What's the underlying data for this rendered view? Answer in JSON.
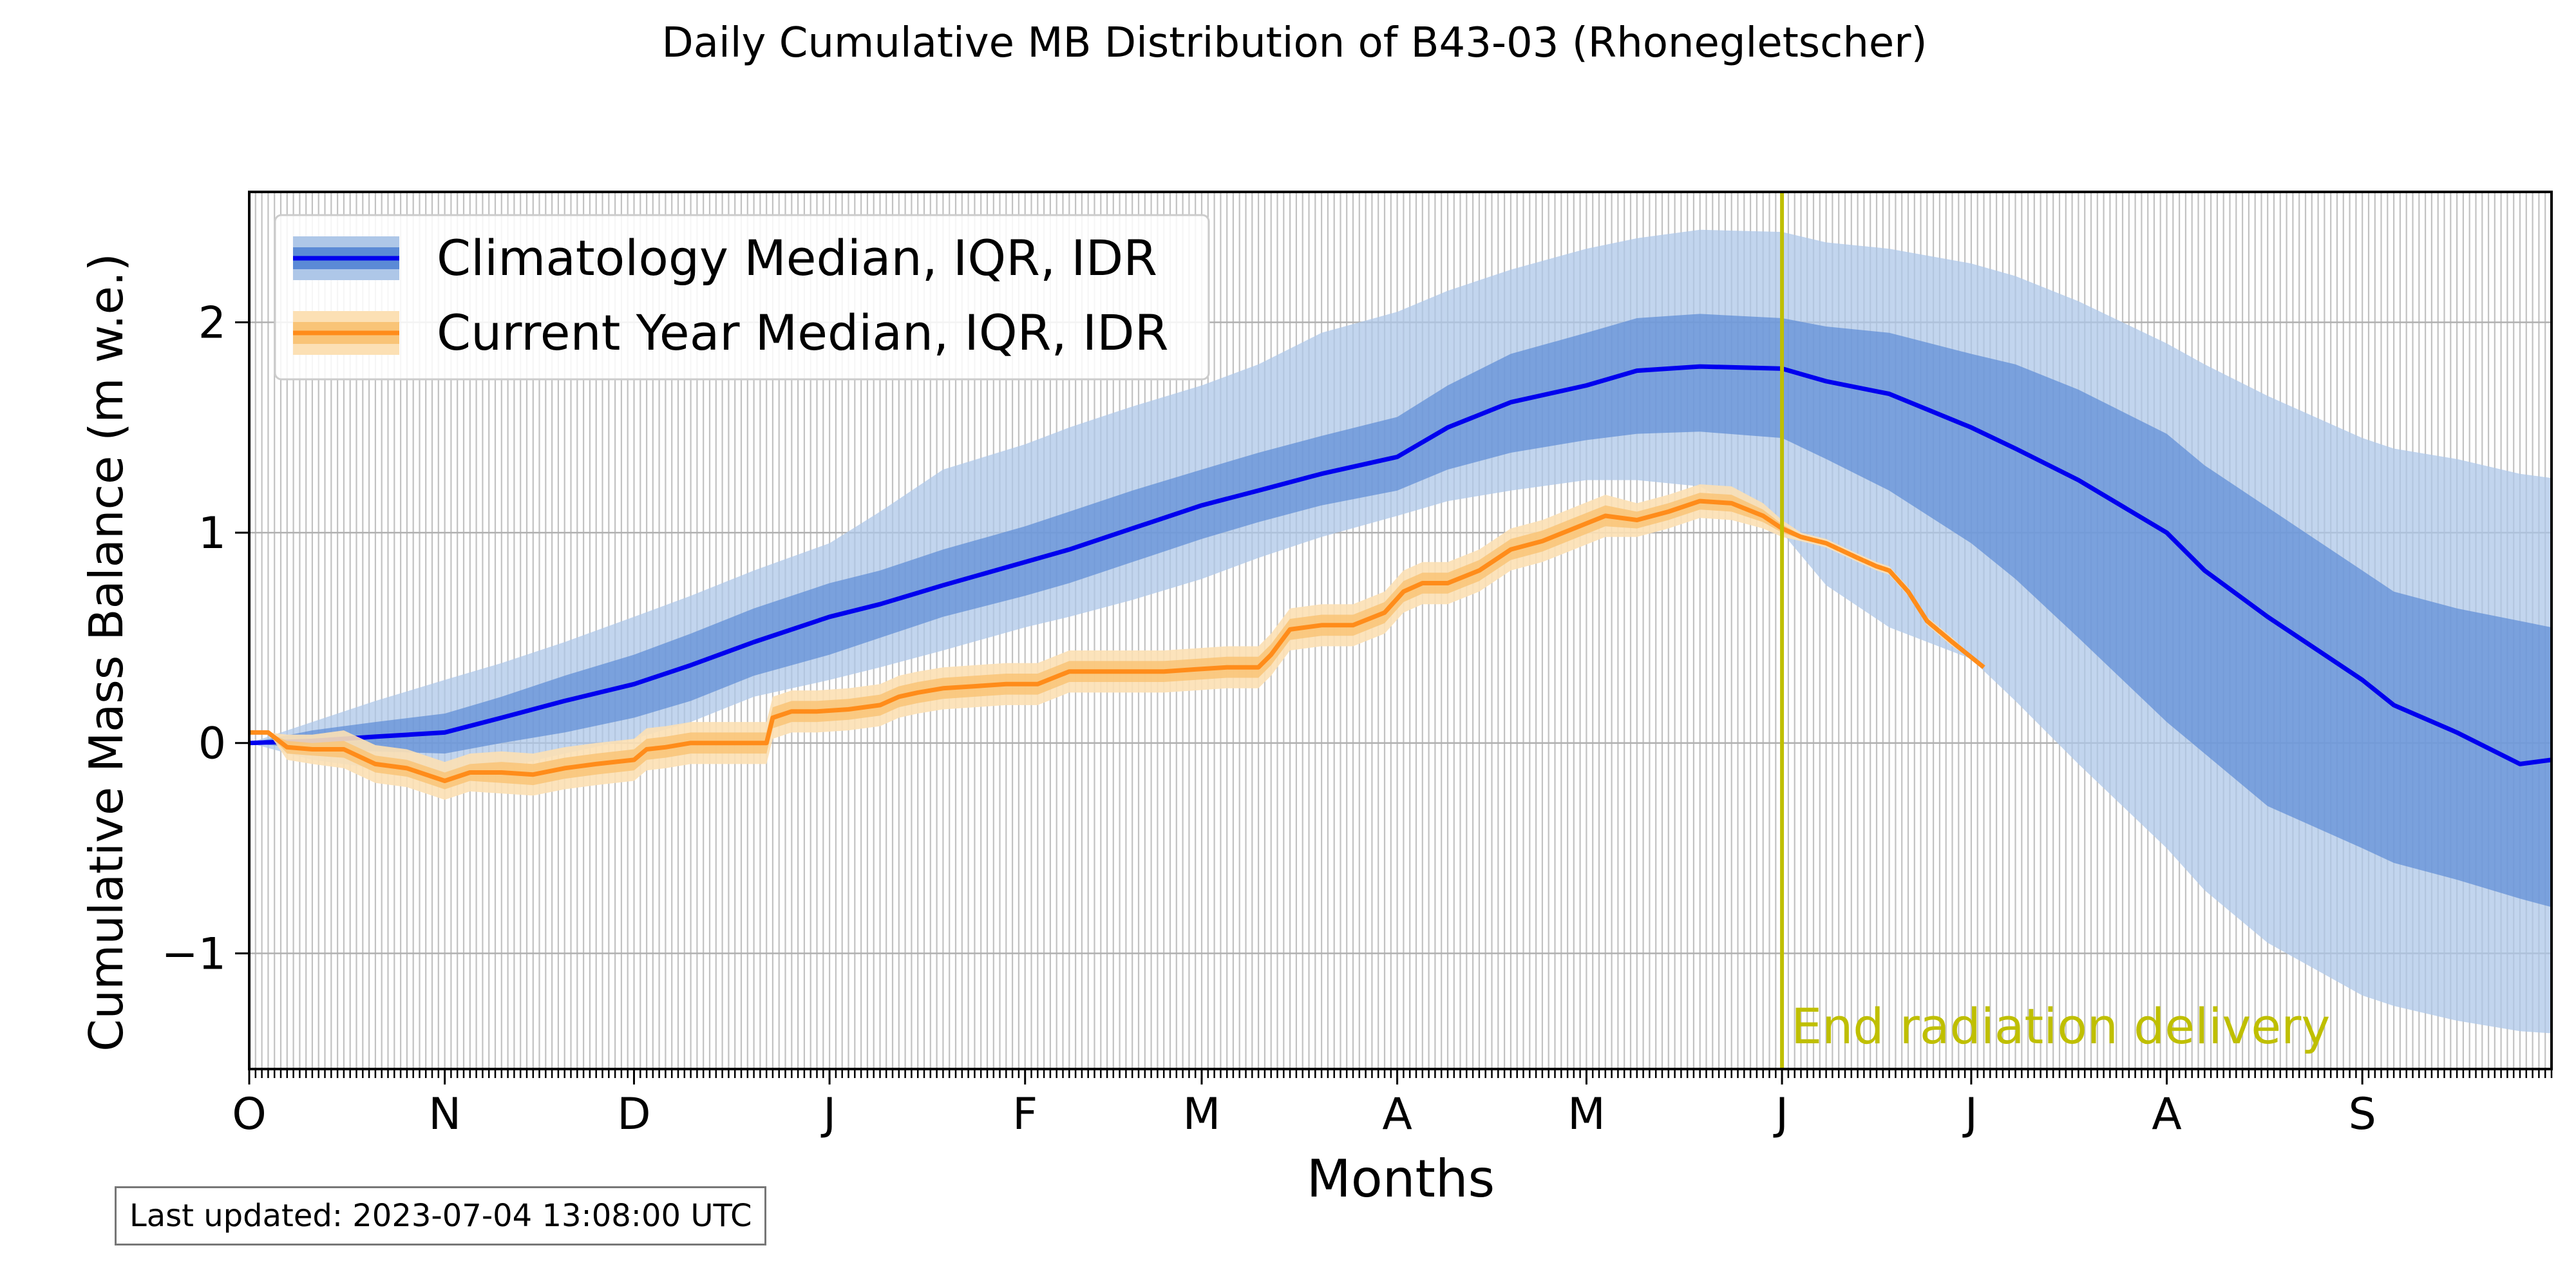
{
  "chart_data": {
    "type": "area",
    "title": "Daily Cumulative MB Distribution of B43-03 (Rhonegletscher)",
    "xlabel": "Months",
    "ylabel": "Cumulative Mass Balance (m w.e.)",
    "x_unit": "day of hydrological year (1 Oct = 0)",
    "xlim": [
      0,
      365
    ],
    "ylim": [
      -1.55,
      2.62
    ],
    "yticks": [
      -1,
      0,
      1,
      2
    ],
    "ytick_labels": [
      "−1",
      "0",
      "1",
      "2"
    ],
    "month_ticks": [
      {
        "day": 0,
        "label": "O"
      },
      {
        "day": 31,
        "label": "N"
      },
      {
        "day": 61,
        "label": "D"
      },
      {
        "day": 92,
        "label": "J"
      },
      {
        "day": 123,
        "label": "F"
      },
      {
        "day": 151,
        "label": "M"
      },
      {
        "day": 182,
        "label": "A"
      },
      {
        "day": 212,
        "label": "M"
      },
      {
        "day": 243,
        "label": "J"
      },
      {
        "day": 273,
        "label": "J"
      },
      {
        "day": 304,
        "label": "A"
      },
      {
        "day": 335,
        "label": "S"
      }
    ],
    "grid": true,
    "legend_position": "top-left",
    "vline": {
      "day": 243,
      "label": "End radiation delivery",
      "color": "#bfbf00"
    },
    "series": [
      {
        "name": "Climatology Median, IQR, IDR",
        "color": "#0000ee",
        "iqr_color": "#5b8ad6",
        "idr_color": "#aec7e8",
        "x": [
          0,
          10,
          20,
          31,
          40,
          50,
          61,
          70,
          80,
          92,
          100,
          110,
          123,
          130,
          140,
          151,
          160,
          170,
          182,
          190,
          200,
          212,
          220,
          230,
          243,
          250,
          260,
          273,
          280,
          290,
          304,
          310,
          320,
          335,
          340,
          350,
          360,
          365
        ],
        "median": [
          0,
          0.01,
          0.03,
          0.05,
          0.12,
          0.2,
          0.28,
          0.37,
          0.48,
          0.6,
          0.66,
          0.75,
          0.86,
          0.92,
          1.02,
          1.13,
          1.2,
          1.28,
          1.36,
          1.5,
          1.62,
          1.7,
          1.77,
          1.79,
          1.78,
          1.72,
          1.66,
          1.5,
          1.4,
          1.25,
          1.0,
          0.82,
          0.6,
          0.3,
          0.18,
          0.05,
          -0.1,
          -0.08
        ],
        "q25": [
          0,
          -0.03,
          -0.04,
          -0.05,
          0.0,
          0.05,
          0.12,
          0.2,
          0.32,
          0.42,
          0.5,
          0.6,
          0.7,
          0.76,
          0.86,
          0.97,
          1.05,
          1.13,
          1.2,
          1.3,
          1.38,
          1.44,
          1.47,
          1.48,
          1.45,
          1.35,
          1.2,
          0.95,
          0.78,
          0.5,
          0.1,
          -0.05,
          -0.3,
          -0.5,
          -0.57,
          -0.65,
          -0.74,
          -0.78
        ],
        "q75": [
          0,
          0.06,
          0.1,
          0.14,
          0.22,
          0.32,
          0.42,
          0.52,
          0.64,
          0.76,
          0.82,
          0.92,
          1.03,
          1.1,
          1.2,
          1.3,
          1.38,
          1.46,
          1.55,
          1.7,
          1.85,
          1.95,
          2.02,
          2.04,
          2.02,
          1.98,
          1.95,
          1.85,
          1.8,
          1.68,
          1.47,
          1.32,
          1.12,
          0.82,
          0.72,
          0.64,
          0.58,
          0.55
        ],
        "q05": [
          0,
          -0.08,
          -0.12,
          -0.15,
          -0.12,
          -0.05,
          0.02,
          0.1,
          0.22,
          0.3,
          0.36,
          0.44,
          0.55,
          0.6,
          0.68,
          0.78,
          0.88,
          0.98,
          1.08,
          1.15,
          1.2,
          1.25,
          1.25,
          1.22,
          1.0,
          0.75,
          0.55,
          0.4,
          0.2,
          -0.1,
          -0.5,
          -0.7,
          -0.95,
          -1.2,
          -1.25,
          -1.32,
          -1.37,
          -1.38
        ],
        "q95": [
          0,
          0.1,
          0.2,
          0.3,
          0.38,
          0.48,
          0.6,
          0.7,
          0.82,
          0.95,
          1.1,
          1.3,
          1.42,
          1.5,
          1.6,
          1.7,
          1.8,
          1.95,
          2.05,
          2.15,
          2.25,
          2.35,
          2.4,
          2.44,
          2.43,
          2.38,
          2.35,
          2.28,
          2.22,
          2.1,
          1.9,
          1.8,
          1.65,
          1.45,
          1.4,
          1.35,
          1.28,
          1.26
        ]
      },
      {
        "name": "Current Year Median, IQR, IDR",
        "color": "#ff8c1a",
        "iqr_color": "#f9c477",
        "idr_color": "#fce0b4",
        "x": [
          0,
          3,
          6,
          10,
          15,
          20,
          25,
          28,
          31,
          35,
          40,
          45,
          50,
          55,
          61,
          63,
          66,
          70,
          75,
          80,
          82,
          83,
          86,
          90,
          95,
          100,
          103,
          106,
          110,
          115,
          120,
          125,
          130,
          135,
          140,
          145,
          150,
          155,
          160,
          162,
          165,
          170,
          175,
          180,
          183,
          186,
          190,
          195,
          200,
          205,
          210,
          215,
          220,
          225,
          230,
          235,
          240,
          243,
          246,
          250,
          255,
          258,
          260,
          263,
          266,
          270,
          275
        ],
        "median": [
          0.05,
          0.05,
          -0.02,
          -0.03,
          -0.03,
          -0.1,
          -0.12,
          -0.15,
          -0.18,
          -0.14,
          -0.14,
          -0.15,
          -0.12,
          -0.1,
          -0.08,
          -0.03,
          -0.02,
          0.0,
          0.0,
          0.0,
          0.0,
          0.12,
          0.15,
          0.15,
          0.16,
          0.18,
          0.22,
          0.24,
          0.26,
          0.27,
          0.28,
          0.28,
          0.34,
          0.34,
          0.34,
          0.34,
          0.35,
          0.36,
          0.36,
          0.42,
          0.54,
          0.56,
          0.56,
          0.62,
          0.72,
          0.76,
          0.76,
          0.82,
          0.92,
          0.96,
          1.02,
          1.08,
          1.06,
          1.1,
          1.15,
          1.14,
          1.08,
          1.02,
          0.98,
          0.95,
          0.88,
          0.84,
          0.82,
          0.72,
          0.58,
          0.48,
          0.36
        ],
        "q25": [
          0.05,
          0.05,
          -0.05,
          -0.06,
          -0.07,
          -0.14,
          -0.16,
          -0.19,
          -0.22,
          -0.18,
          -0.19,
          -0.2,
          -0.17,
          -0.15,
          -0.13,
          -0.08,
          -0.07,
          -0.05,
          -0.05,
          -0.05,
          -0.05,
          0.07,
          0.1,
          0.1,
          0.11,
          0.13,
          0.17,
          0.19,
          0.21,
          0.22,
          0.23,
          0.23,
          0.29,
          0.29,
          0.29,
          0.29,
          0.3,
          0.31,
          0.31,
          0.37,
          0.49,
          0.51,
          0.51,
          0.57,
          0.67,
          0.71,
          0.71,
          0.77,
          0.87,
          0.91,
          0.97,
          1.03,
          1.02,
          1.06,
          1.11,
          1.1,
          1.05,
          1.0,
          0.97,
          0.94,
          0.87,
          0.83,
          0.81,
          0.71,
          0.57,
          0.47,
          0.36
        ],
        "q75": [
          0.05,
          0.05,
          0.01,
          0.0,
          0.01,
          -0.06,
          -0.08,
          -0.11,
          -0.14,
          -0.1,
          -0.09,
          -0.1,
          -0.07,
          -0.05,
          -0.03,
          0.02,
          0.03,
          0.05,
          0.05,
          0.05,
          0.05,
          0.17,
          0.2,
          0.2,
          0.21,
          0.23,
          0.27,
          0.29,
          0.31,
          0.32,
          0.33,
          0.33,
          0.39,
          0.39,
          0.39,
          0.39,
          0.4,
          0.41,
          0.41,
          0.47,
          0.59,
          0.61,
          0.61,
          0.67,
          0.77,
          0.81,
          0.81,
          0.87,
          0.97,
          1.01,
          1.07,
          1.13,
          1.1,
          1.14,
          1.19,
          1.18,
          1.11,
          1.04,
          0.99,
          0.96,
          0.89,
          0.85,
          0.83,
          0.73,
          0.59,
          0.49,
          0.36
        ],
        "q05": [
          0.05,
          0.05,
          -0.08,
          -0.1,
          -0.12,
          -0.19,
          -0.21,
          -0.24,
          -0.27,
          -0.23,
          -0.24,
          -0.25,
          -0.22,
          -0.2,
          -0.18,
          -0.13,
          -0.12,
          -0.1,
          -0.1,
          -0.1,
          -0.1,
          0.02,
          0.05,
          0.05,
          0.06,
          0.08,
          0.12,
          0.14,
          0.16,
          0.17,
          0.18,
          0.18,
          0.24,
          0.24,
          0.24,
          0.24,
          0.25,
          0.26,
          0.26,
          0.32,
          0.44,
          0.46,
          0.46,
          0.52,
          0.62,
          0.66,
          0.66,
          0.72,
          0.82,
          0.86,
          0.92,
          0.98,
          0.98,
          1.02,
          1.07,
          1.06,
          1.02,
          0.98,
          0.96,
          0.93,
          0.86,
          0.82,
          0.8,
          0.7,
          0.56,
          0.46,
          0.36
        ],
        "q95": [
          0.05,
          0.05,
          0.04,
          0.04,
          0.06,
          -0.01,
          -0.03,
          -0.06,
          -0.09,
          -0.05,
          -0.04,
          -0.05,
          -0.02,
          0.0,
          0.02,
          0.07,
          0.08,
          0.1,
          0.1,
          0.1,
          0.1,
          0.22,
          0.25,
          0.25,
          0.26,
          0.28,
          0.32,
          0.34,
          0.36,
          0.37,
          0.38,
          0.38,
          0.44,
          0.44,
          0.44,
          0.44,
          0.45,
          0.46,
          0.46,
          0.52,
          0.64,
          0.66,
          0.66,
          0.72,
          0.82,
          0.86,
          0.86,
          0.92,
          1.02,
          1.06,
          1.12,
          1.18,
          1.14,
          1.18,
          1.23,
          1.22,
          1.14,
          1.06,
          1.0,
          0.97,
          0.9,
          0.86,
          0.84,
          0.74,
          0.6,
          0.5,
          0.36
        ]
      }
    ]
  },
  "footer": {
    "last_updated": "Last updated: 2023-07-04 13:08:00 UTC"
  }
}
